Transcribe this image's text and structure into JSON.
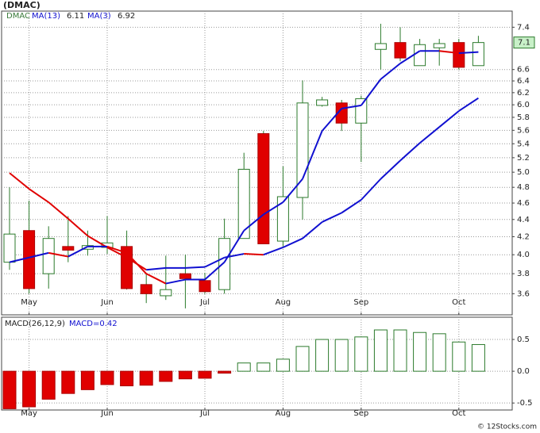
{
  "chart_data": [
    {
      "type": "candlestick",
      "title": "(DMAC)",
      "symbol": "DMAC",
      "categories": [
        null,
        "May",
        null,
        null,
        null,
        "Jun",
        null,
        null,
        null,
        null,
        "Jul",
        null,
        null,
        null,
        "Aug",
        null,
        null,
        null,
        "Sep",
        null,
        null,
        null,
        null,
        "Oct",
        null
      ],
      "open": [
        3.92,
        4.27,
        3.8,
        4.09,
        4.06,
        4.08,
        4.09,
        3.69,
        3.58,
        3.8,
        3.73,
        3.64,
        4.18,
        5.55,
        4.15,
        4.67,
        5.99,
        6.03,
        5.71,
        6.97,
        7.1,
        6.67,
        7.0,
        7.1,
        6.67
      ],
      "high": [
        4.8,
        4.63,
        4.32,
        4.44,
        4.27,
        4.44,
        4.27,
        3.8,
        3.99,
        4.0,
        3.81,
        4.41,
        5.27,
        5.59,
        5.08,
        6.41,
        6.13,
        6.08,
        6.15,
        7.47,
        7.4,
        7.17,
        7.17,
        7.17,
        7.23
      ],
      "low": [
        3.84,
        3.6,
        3.65,
        3.92,
        3.99,
        4.01,
        3.64,
        3.51,
        3.54,
        3.46,
        3.6,
        3.6,
        4.18,
        4.12,
        4.09,
        4.4,
        5.97,
        5.59,
        5.14,
        6.6,
        6.75,
        6.67,
        6.67,
        6.6,
        6.67
      ],
      "close": [
        4.23,
        3.65,
        4.18,
        4.05,
        4.1,
        4.13,
        3.65,
        3.6,
        3.64,
        3.75,
        3.62,
        4.18,
        5.04,
        4.12,
        4.68,
        6.03,
        6.08,
        5.71,
        6.1,
        7.08,
        6.81,
        7.06,
        7.08,
        6.64,
        7.1
      ],
      "up_color": "#2b7a2b",
      "down_color": "#e00000",
      "series": [
        {
          "name": "MA(13)",
          "values": [
            4.99,
            4.78,
            4.61,
            4.41,
            4.21,
            4.08,
            3.97,
            3.84,
            3.86,
            3.86,
            3.87,
            3.97,
            4.01,
            4.0,
            4.08,
            4.18,
            4.37,
            4.48,
            4.64,
            4.91,
            5.16,
            5.41,
            5.65,
            5.9,
            6.11
          ]
        },
        {
          "name": "MA(3)",
          "values": [
            3.92,
            3.97,
            4.02,
            3.98,
            4.09,
            4.09,
            4.02,
            3.8,
            3.7,
            3.74,
            3.74,
            3.92,
            4.27,
            4.46,
            4.61,
            4.91,
            5.59,
            5.94,
            5.99,
            6.43,
            6.71,
            6.94,
            6.94,
            6.9,
            6.92
          ]
        }
      ],
      "line_up_color": "#1010d0",
      "line_down_color": "#e00000",
      "log_scale": true,
      "ylim": [
        3.4,
        7.73
      ],
      "yticks": [
        3.6,
        3.8,
        {
          "value": 4,
          "label": "4.0"
        },
        4.2,
        4.4,
        4.6,
        4.8,
        {
          "value": 5,
          "label": "5.0"
        },
        5.2,
        5.4,
        5.6,
        5.8,
        {
          "value": 6,
          "label": "6.0"
        },
        6.2,
        6.4,
        6.6,
        7.4
      ],
      "grid": true
    },
    {
      "type": "bar",
      "name": "MACD(26,12,9)",
      "legend_label": "MACD=0.42",
      "categories": [
        null,
        "May",
        null,
        null,
        null,
        "Jun",
        null,
        null,
        null,
        null,
        "Jul",
        null,
        null,
        null,
        "Aug",
        null,
        null,
        null,
        "Sep",
        null,
        null,
        null,
        null,
        "Oct",
        null
      ],
      "values": [
        -0.59,
        -0.56,
        -0.44,
        -0.35,
        -0.29,
        -0.21,
        -0.23,
        -0.22,
        -0.16,
        -0.12,
        -0.11,
        -0.03,
        0.13,
        0.13,
        0.19,
        0.39,
        0.5,
        0.5,
        0.54,
        0.65,
        0.65,
        0.61,
        0.59,
        0.46,
        0.42
      ],
      "up_color": "#2b7a2b",
      "down_color": "#e00000",
      "ylim": [
        -0.61,
        0.85
      ],
      "yticks": [
        0.5,
        {
          "value": 0,
          "label": "0.0"
        },
        -0.5
      ],
      "grid": true,
      "credit": "© 12Stocks.com"
    }
  ]
}
